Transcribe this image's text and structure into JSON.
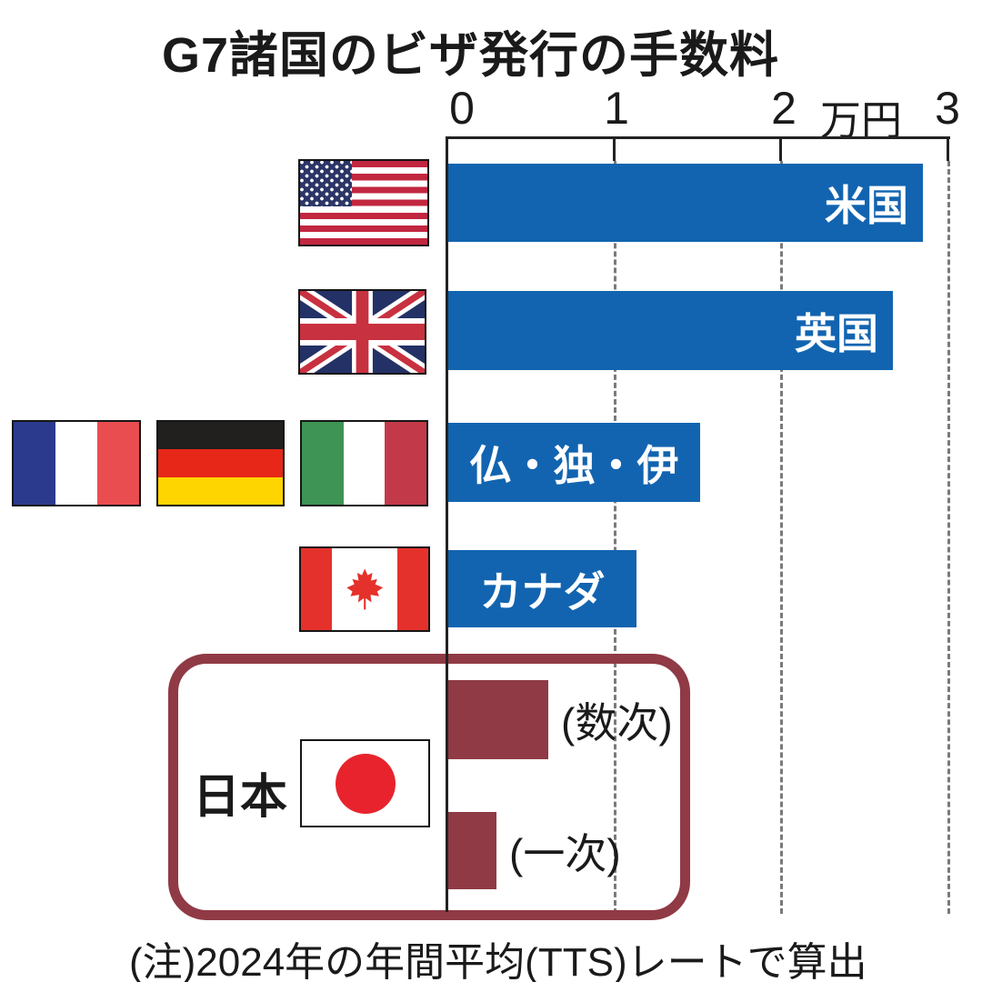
{
  "title": "G7諸国のビザ発行の手数料",
  "note": "(注)2024年の年間平均(TTS)レートで算出",
  "axis": {
    "tick_labels": [
      "0",
      "1",
      "2",
      "3"
    ],
    "unit_label": "万円"
  },
  "japan_group": {
    "label": "日本"
  },
  "colors": {
    "bar_blue": "#1264b0",
    "bar_maroon": "#8f3a45",
    "japan_box_border": "#8f3a45",
    "axis_line": "#222222",
    "gridline": "#7a7a7a"
  },
  "flags": [
    {
      "name": "usa-flag",
      "country": "米国"
    },
    {
      "name": "uk-flag",
      "country": "英国"
    },
    {
      "name": "france-flag",
      "country": "仏"
    },
    {
      "name": "germany-flag",
      "country": "独"
    },
    {
      "name": "italy-flag",
      "country": "伊"
    },
    {
      "name": "canada-flag",
      "country": "カナダ"
    },
    {
      "name": "japan-flag",
      "country": "日本"
    }
  ],
  "chart_data": {
    "type": "bar",
    "orientation": "horizontal",
    "title": "G7諸国のビザ発行の手数料",
    "xlabel": "万円",
    "xlim": [
      0,
      3
    ],
    "x_ticks": [
      0,
      1,
      2,
      3
    ],
    "gridlines": "vertical-dashed",
    "legend": "none",
    "categories": [
      "米国",
      "英国",
      "仏・独・伊",
      "カナダ",
      "日本(数次)",
      "日本(一次)"
    ],
    "values": [
      2.85,
      2.67,
      1.51,
      1.13,
      0.6,
      0.29
    ],
    "bars": [
      {
        "category": "米国",
        "value": 2.85,
        "color": "#1264b0",
        "label": "米国",
        "label_placement": "inside-right",
        "label_color": "#ffffff"
      },
      {
        "category": "英国",
        "value": 2.67,
        "color": "#1264b0",
        "label": "英国",
        "label_placement": "inside-right",
        "label_color": "#ffffff"
      },
      {
        "category": "仏・独・伊",
        "value": 1.51,
        "color": "#1264b0",
        "label": "仏・独・伊",
        "label_placement": "inside-center",
        "label_color": "#ffffff"
      },
      {
        "category": "カナダ",
        "value": 1.13,
        "color": "#1264b0",
        "label": "カナダ",
        "label_placement": "inside-center",
        "label_color": "#ffffff"
      },
      {
        "category": "日本(数次)",
        "value": 0.6,
        "color": "#8f3a45",
        "label": "(数次)",
        "label_placement": "outside-right",
        "label_color": "#1a1a1a"
      },
      {
        "category": "日本(一次)",
        "value": 0.29,
        "color": "#8f3a45",
        "label": "(一次)",
        "label_placement": "outside-right",
        "label_color": "#1a1a1a"
      }
    ],
    "note": "(注)2024年の年間平均(TTS)レートで算出"
  }
}
